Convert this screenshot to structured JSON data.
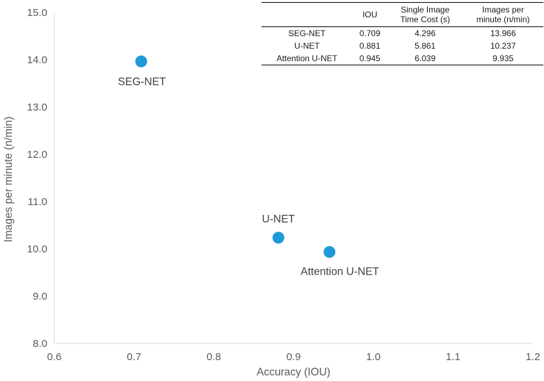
{
  "chart_data": {
    "type": "scatter",
    "title": "",
    "xlabel": "Accuracy (IOU)",
    "ylabel": "Images per minute (n/min)",
    "xlim": [
      0.6,
      1.2
    ],
    "ylim": [
      8.0,
      15.0
    ],
    "x_ticks": [
      "0.6",
      "0.7",
      "0.8",
      "0.9",
      "1.0",
      "1.1",
      "1.2"
    ],
    "y_ticks": [
      "8.0",
      "9.0",
      "10.0",
      "11.0",
      "12.0",
      "13.0",
      "14.0",
      "15.0"
    ],
    "points": [
      {
        "label": "SEG-NET",
        "x": 0.709,
        "y": 13.966
      },
      {
        "label": "U-NET",
        "x": 0.881,
        "y": 10.237
      },
      {
        "label": "Attention U-NET",
        "x": 0.945,
        "y": 9.935
      }
    ],
    "marker_color": "#1f9ad6",
    "grid": false
  },
  "table": {
    "headers": [
      "",
      "IOU",
      "Single Image\nTime Cost (s)",
      "Images per\nminute (n/min)"
    ],
    "rows": [
      [
        "SEG-NET",
        "0.709",
        "4.296",
        "13.966"
      ],
      [
        "U-NET",
        "0.881",
        "5.861",
        "10.237"
      ],
      [
        "Attention U-NET",
        "0.945",
        "6.039",
        "9.935"
      ]
    ]
  }
}
